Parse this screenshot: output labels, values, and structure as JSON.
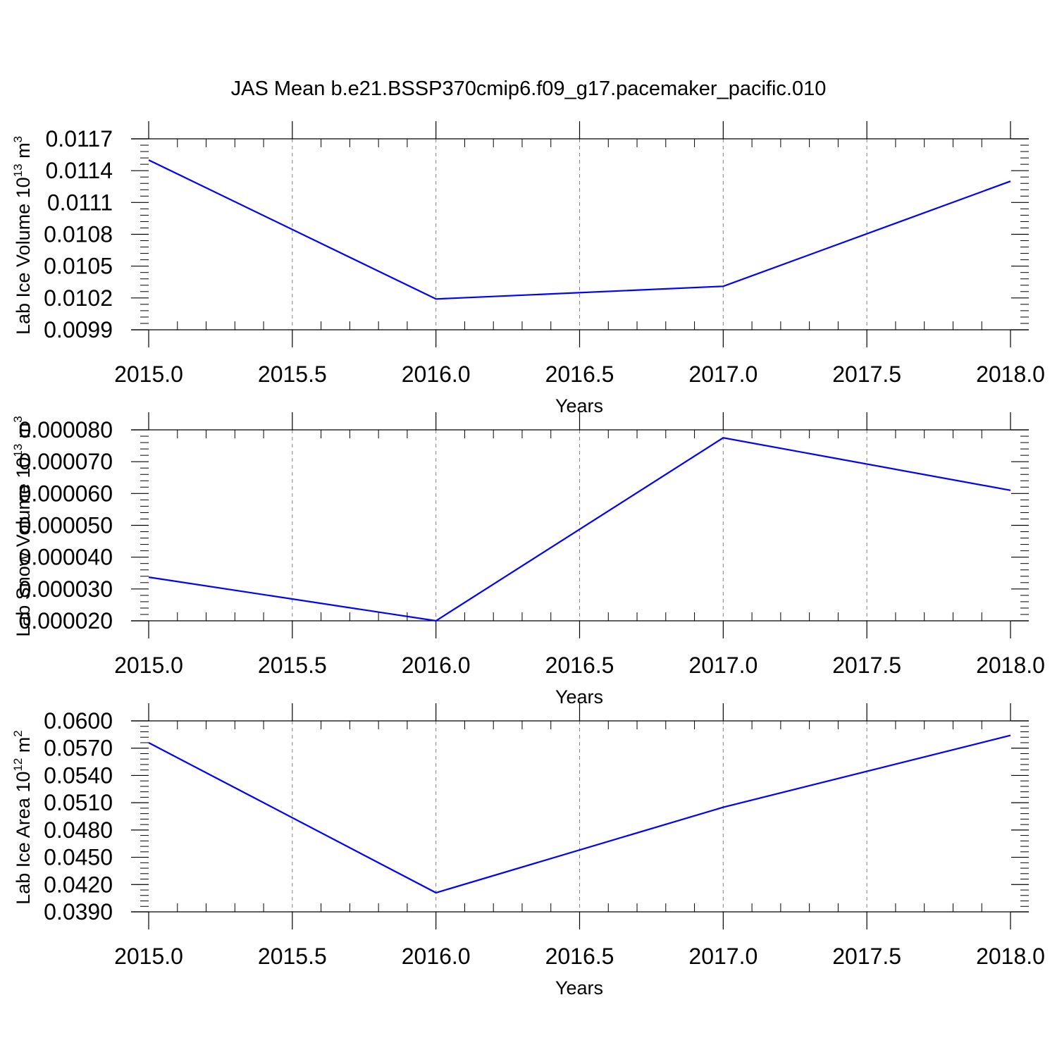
{
  "title": "JAS Mean b.e21.BSSP370cmip6.f09_g17.pacemaker_pacific.010",
  "colors": {
    "line": "#0000ff",
    "axes": "#000000",
    "grid": "#808080",
    "background": "#ffffff"
  },
  "chart_data": [
    {
      "type": "line",
      "xlabel": "Years",
      "ylabel": "Lab Ice Volume 10",
      "ylabel_sup": "13",
      "ylabel_unit": "m",
      "ylabel_unit_sup": "3",
      "xlim": [
        2015.0,
        2018.0
      ],
      "ylim": [
        0.0099,
        0.0117
      ],
      "xticks": [
        "2015.0",
        "2015.5",
        "2016.0",
        "2016.5",
        "2017.0",
        "2017.5",
        "2018.0"
      ],
      "yticks": [
        "0.0099",
        "0.0102",
        "0.0105",
        "0.0108",
        "0.0111",
        "0.0114",
        "0.0117"
      ],
      "grid": "vertical dashed at major x ticks",
      "x": [
        2015,
        2016,
        2017,
        2018
      ],
      "series": [
        {
          "values": [
            0.0115,
            0.01019,
            0.01031,
            0.0113
          ]
        }
      ]
    },
    {
      "type": "line",
      "xlabel": "Years",
      "ylabel": "Lab Snow Volume 10",
      "ylabel_sup": "13",
      "ylabel_unit": "m",
      "ylabel_unit_sup": "3",
      "xlim": [
        2015.0,
        2018.0
      ],
      "ylim": [
        2e-05,
        8e-05
      ],
      "xticks": [
        "2015.0",
        "2015.5",
        "2016.0",
        "2016.5",
        "2017.0",
        "2017.5",
        "2018.0"
      ],
      "yticks": [
        "0.000020",
        "0.000030",
        "0.000040",
        "0.000050",
        "0.000060",
        "0.000070",
        "0.000080"
      ],
      "grid": "vertical dashed at major x ticks",
      "x": [
        2015,
        2016,
        2017,
        2018
      ],
      "series": [
        {
          "values": [
            3.37e-05,
            2e-05,
            7.75e-05,
            6.1e-05
          ]
        }
      ]
    },
    {
      "type": "line",
      "xlabel": "Years",
      "ylabel": "Lab Ice Area 10",
      "ylabel_sup": "12",
      "ylabel_unit": "m",
      "ylabel_unit_sup": "2",
      "xlim": [
        2015.0,
        2018.0
      ],
      "ylim": [
        0.039,
        0.06
      ],
      "xticks": [
        "2015.0",
        "2015.5",
        "2016.0",
        "2016.5",
        "2017.0",
        "2017.5",
        "2018.0"
      ],
      "yticks": [
        "0.0390",
        "0.0420",
        "0.0450",
        "0.0480",
        "0.0510",
        "0.0540",
        "0.0570",
        "0.0600"
      ],
      "grid": "vertical dashed at major x ticks",
      "x": [
        2015,
        2016,
        2017,
        2018
      ],
      "series": [
        {
          "values": [
            0.0576,
            0.0411,
            0.0505,
            0.0584
          ]
        }
      ]
    }
  ]
}
